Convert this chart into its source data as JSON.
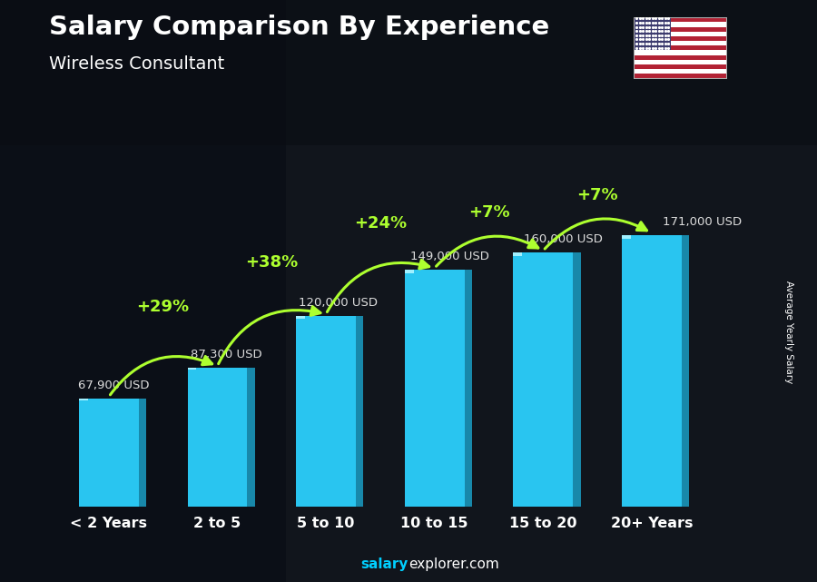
{
  "title": "Salary Comparison By Experience",
  "subtitle": "Wireless Consultant",
  "categories": [
    "< 2 Years",
    "2 to 5",
    "5 to 10",
    "10 to 15",
    "15 to 20",
    "20+ Years"
  ],
  "values": [
    67900,
    87300,
    120000,
    149000,
    160000,
    171000
  ],
  "value_labels": [
    "67,900 USD",
    "87,300 USD",
    "120,000 USD",
    "149,000 USD",
    "160,000 USD",
    "171,000 USD"
  ],
  "pct_changes": [
    "+29%",
    "+38%",
    "+24%",
    "+7%",
    "+7%"
  ],
  "bar_face_color": "#29C5F0",
  "bar_right_color": "#1888AA",
  "bar_top_color": "#80E5FF",
  "bg_dark": "#0D1117",
  "title_color": "#FFFFFF",
  "subtitle_color": "#FFFFFF",
  "value_label_color": "#DDDDDD",
  "pct_color": "#ADFF2F",
  "ylabel_text": "Average Yearly Salary",
  "footer_salary_color": "#00CFFF",
  "footer_explorer_color": "#FFFFFF",
  "ylim": [
    0,
    220000
  ],
  "bar_width": 0.55
}
